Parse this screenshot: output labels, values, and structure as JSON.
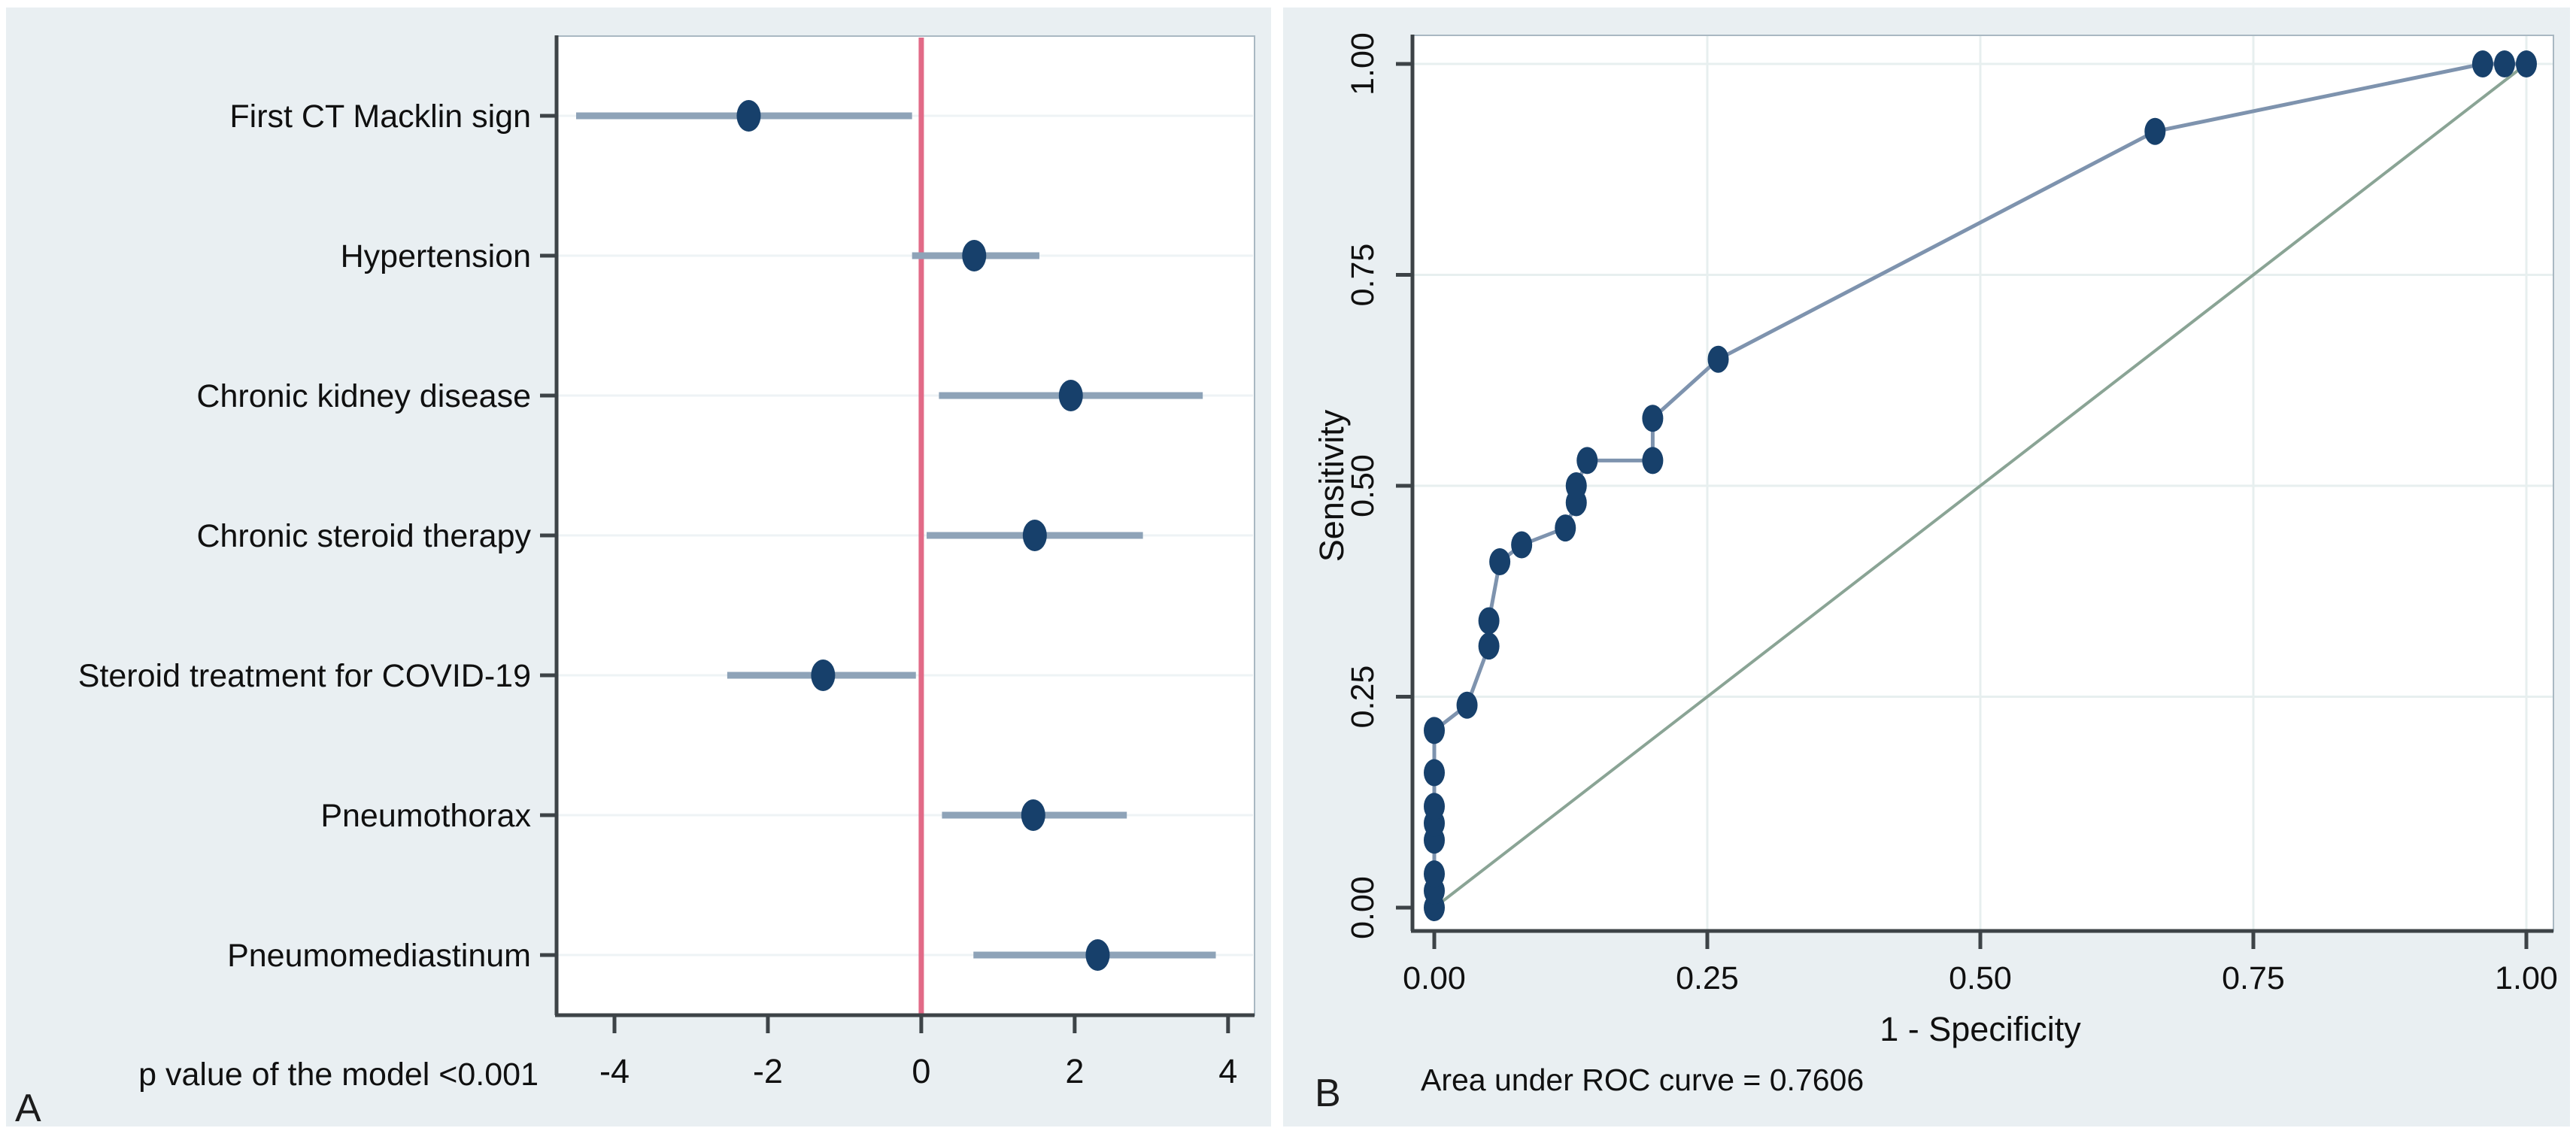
{
  "figure": {
    "panel_a_letter": "A",
    "panel_b_letter": "B"
  },
  "colors": {
    "panel_bg": "#e9eff2",
    "plot_bg": "#ffffff",
    "plot_border": "#a9b8c2",
    "axis": "#3d4347",
    "marker": "#17406b",
    "ci_line": "#8ea3b8",
    "roc_line": "#7e93ae",
    "diagonal": "#8aa495",
    "zero_line": "#e26a87",
    "grid_forest": "#eef3f5",
    "grid_roc": "#e7efef",
    "text": "#101010"
  },
  "chart_data": [
    {
      "id": "forest",
      "type": "scatter",
      "panel": "A",
      "title": "",
      "xlabel": "",
      "note": "p value of the model <0.001",
      "xlim": [
        -4.755,
        4.345
      ],
      "xtick_values": [
        -4,
        -2,
        0,
        2,
        4
      ],
      "xtick_labels": [
        "-4",
        "-2",
        "0",
        "2",
        "4"
      ],
      "zero_line_x": 0,
      "grid": "horizontal-rows",
      "categories": [
        "First CT Macklin sign",
        "Hypertension",
        "Chronic kidney disease",
        "Chronic steroid therapy",
        "Steroid treatment for COVID-19",
        "Pneumothorax",
        "Pneumomediastinum"
      ],
      "series": [
        {
          "name": "estimate",
          "values": [
            -2.25,
            0.69,
            1.95,
            1.48,
            -1.28,
            1.46,
            2.3
          ]
        },
        {
          "name": "ci_low",
          "values": [
            -4.5,
            -0.12,
            0.23,
            0.07,
            -2.53,
            0.27,
            0.68
          ]
        },
        {
          "name": "ci_high",
          "values": [
            -0.12,
            1.54,
            3.67,
            2.89,
            -0.07,
            2.68,
            3.84
          ]
        }
      ]
    },
    {
      "id": "roc",
      "type": "line",
      "panel": "B",
      "title": "",
      "xlabel": "1 - Specificity",
      "ylabel": "Sensitivity",
      "annotation": "Area under ROC curve = 0.7606",
      "auc": 0.7606,
      "xlim": [
        0,
        1
      ],
      "ylim": [
        0,
        1
      ],
      "xtick_values": [
        0,
        0.25,
        0.5,
        0.75,
        1
      ],
      "xtick_labels": [
        "0.00",
        "0.25",
        "0.50",
        "0.75",
        "1.00"
      ],
      "ytick_values": [
        0,
        0.25,
        0.5,
        0.75,
        1
      ],
      "ytick_labels": [
        "0.00",
        "0.25",
        "0.50",
        "0.75",
        "1.00"
      ],
      "grid": "both",
      "legend": "none",
      "roc_points": [
        [
          0.0,
          0.0
        ],
        [
          0.0,
          0.02
        ],
        [
          0.0,
          0.04
        ],
        [
          0.0,
          0.08
        ],
        [
          0.0,
          0.1
        ],
        [
          0.0,
          0.12
        ],
        [
          0.0,
          0.16
        ],
        [
          0.0,
          0.21
        ],
        [
          0.03,
          0.24
        ],
        [
          0.05,
          0.31
        ],
        [
          0.05,
          0.34
        ],
        [
          0.06,
          0.41
        ],
        [
          0.08,
          0.43
        ],
        [
          0.12,
          0.45
        ],
        [
          0.13,
          0.48
        ],
        [
          0.13,
          0.5
        ],
        [
          0.14,
          0.53
        ],
        [
          0.2,
          0.53
        ],
        [
          0.2,
          0.58
        ],
        [
          0.26,
          0.65
        ],
        [
          0.66,
          0.92
        ],
        [
          0.96,
          1.0
        ],
        [
          0.98,
          1.0
        ],
        [
          1.0,
          1.0
        ]
      ],
      "reference_line": [
        [
          0,
          0
        ],
        [
          1,
          1
        ]
      ]
    }
  ]
}
